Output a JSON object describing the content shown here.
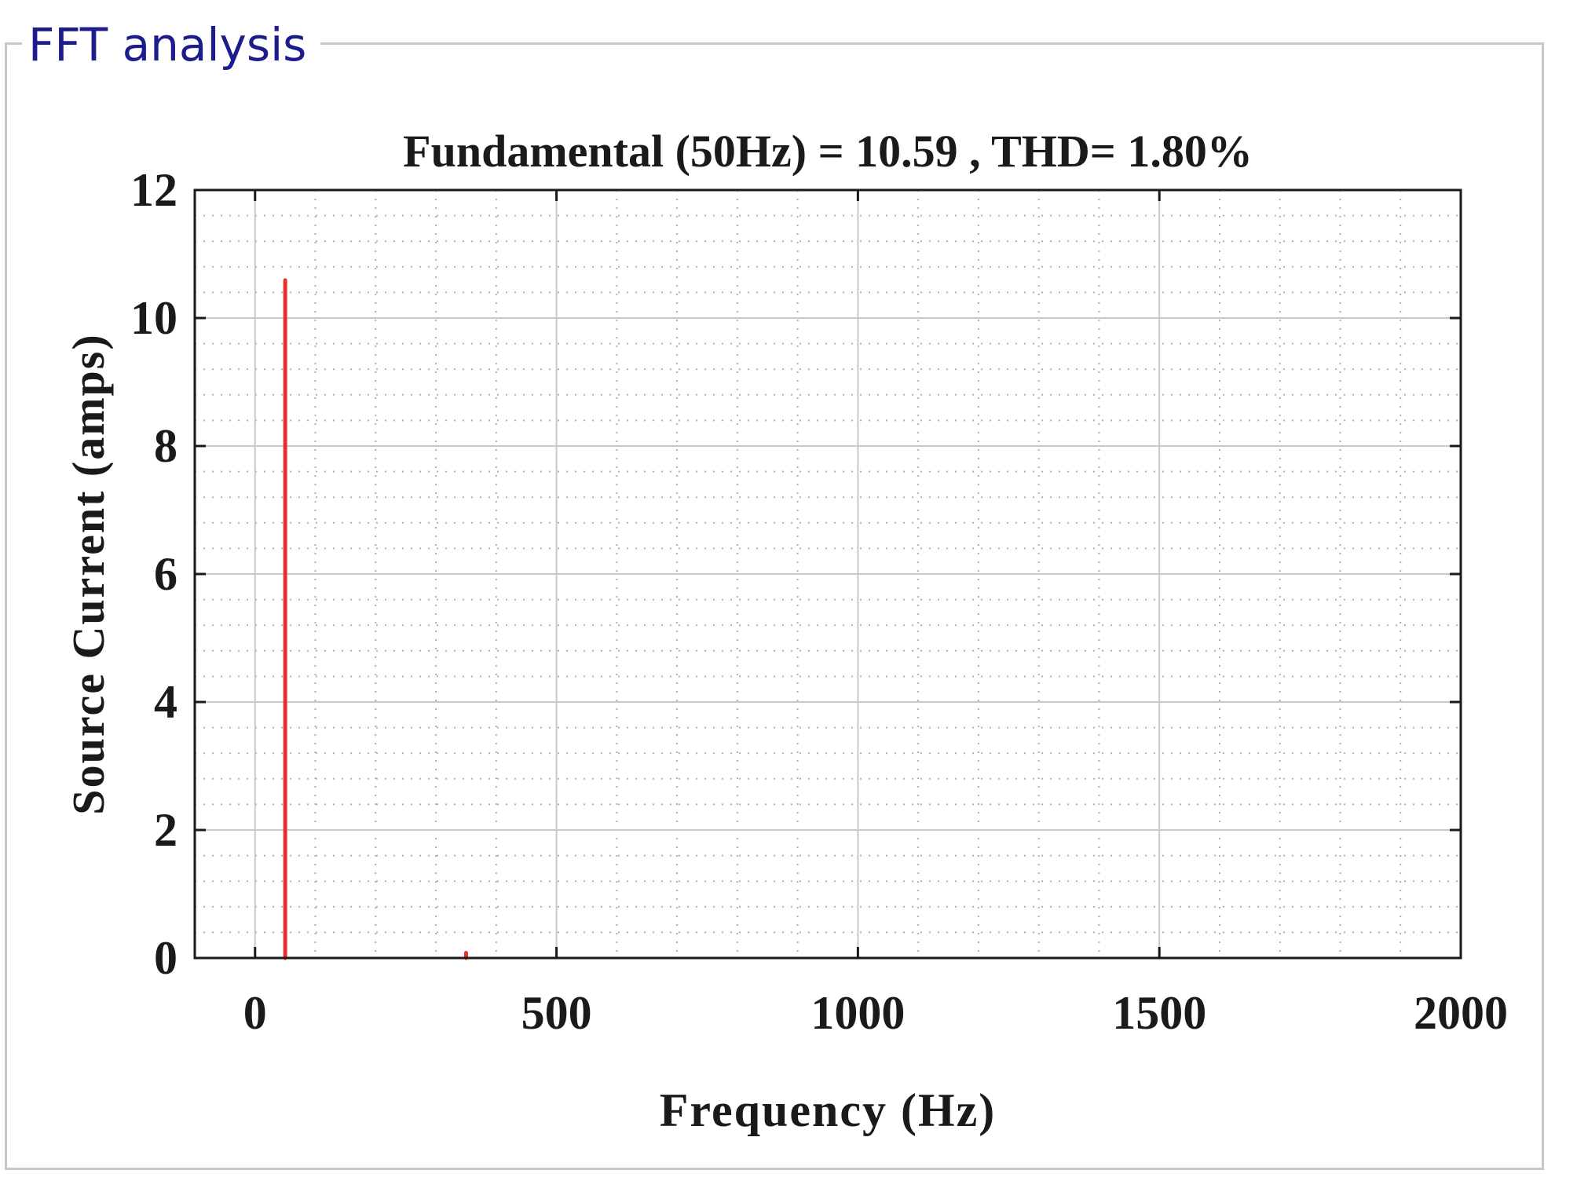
{
  "panel": {
    "title": "FFT analysis"
  },
  "chart_data": {
    "type": "line",
    "title": "Fundamental (50Hz) = 10.59 , THD= 1.80%",
    "xlabel": "Frequency (Hz)",
    "ylabel": "Source Current (amps)",
    "xlim": [
      -100,
      2000
    ],
    "ylim": [
      0,
      12
    ],
    "xticks": [
      0,
      500,
      1000,
      1500,
      2000
    ],
    "yticks": [
      0,
      2,
      4,
      6,
      8,
      10,
      12
    ],
    "grid": true,
    "minor_grid": true,
    "legend": "none",
    "series": [
      {
        "color": "#e8302a",
        "x": [
          50,
          350
        ],
        "y": [
          10.59,
          0.08
        ]
      }
    ]
  }
}
